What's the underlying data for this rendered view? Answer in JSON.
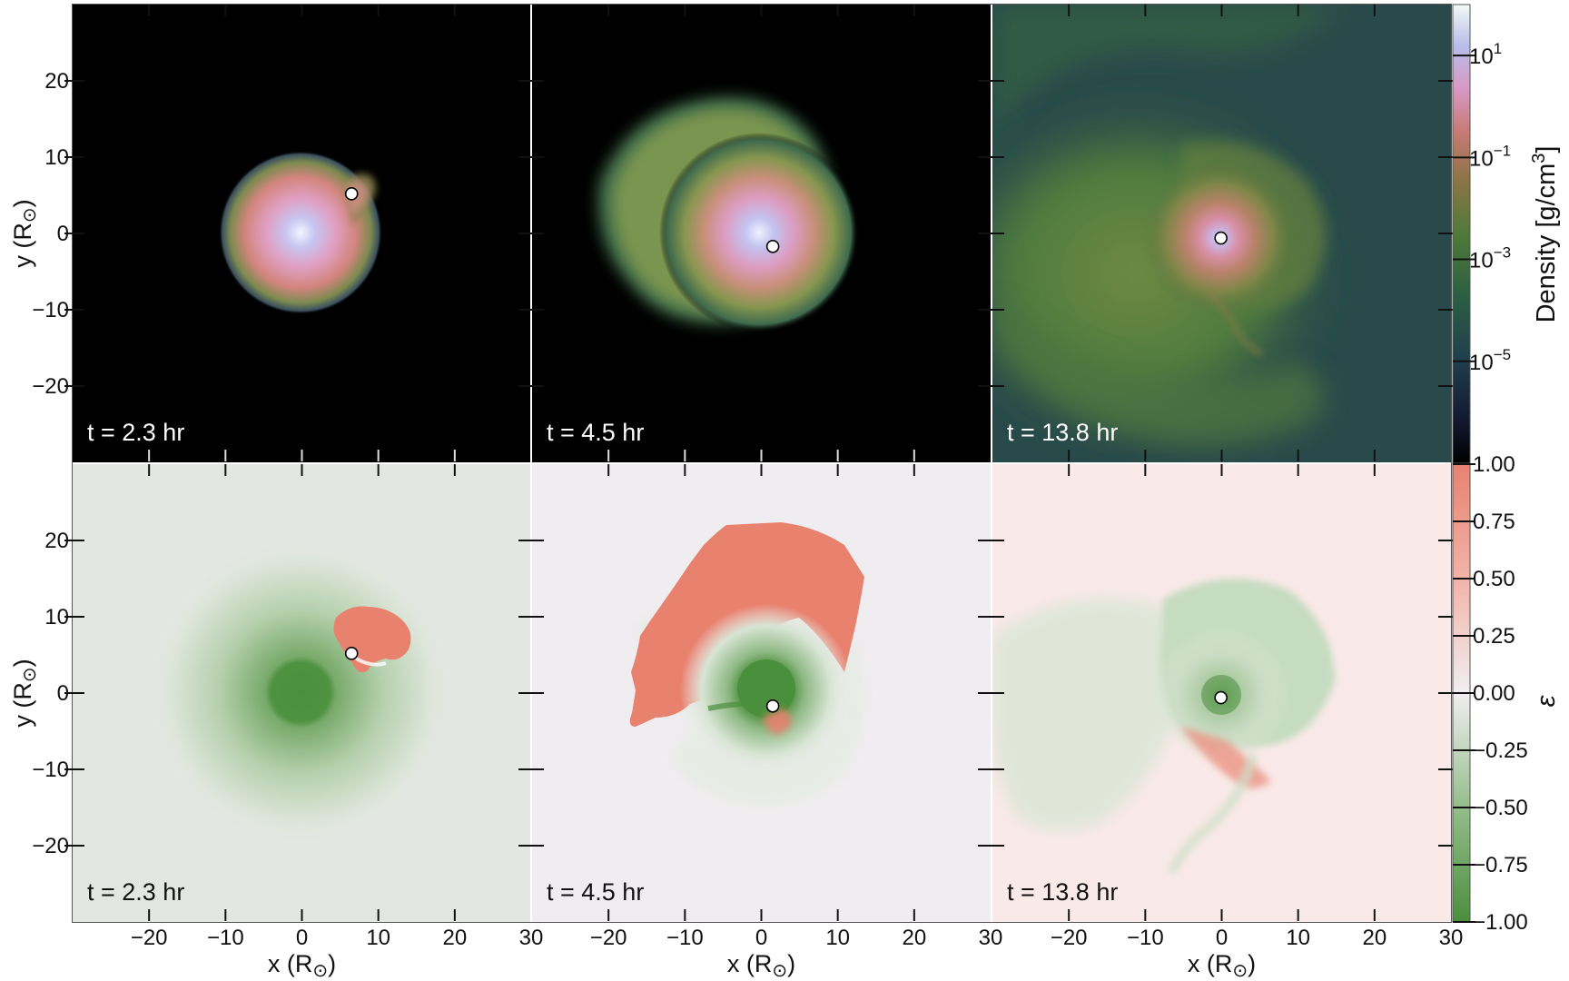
{
  "chart_data": [
    {
      "type": "heatmap",
      "quantity": "density",
      "colorbar": {
        "label_base": "Density [g/cm",
        "label_exp": "3",
        "label_close": "]",
        "scale": "log",
        "ticks": [
          {
            "base": "10",
            "exp": "1",
            "value": 1
          },
          {
            "base": "10",
            "exp": "−1",
            "value": -1
          },
          {
            "base": "10",
            "exp": "−3",
            "value": -3
          },
          {
            "base": "10",
            "exp": "−5",
            "value": -5
          }
        ],
        "range_log10": [
          -7,
          2
        ]
      },
      "panels": [
        {
          "time_label": "t = 2.3 hr",
          "companion": {
            "x": 6.5,
            "y": 5.2
          }
        },
        {
          "time_label": "t = 4.5 hr",
          "companion": {
            "x": 1.5,
            "y": -1.7
          }
        },
        {
          "time_label": "t = 13.8 hr",
          "companion": {
            "x": -0.1,
            "y": -0.6
          }
        }
      ]
    },
    {
      "type": "heatmap",
      "quantity": "epsilon",
      "colorbar": {
        "label": "ε",
        "scale": "linear",
        "range": [
          -1.0,
          1.0
        ],
        "tick_labels": [
          "1.00",
          "0.75",
          "0.50",
          "0.25",
          "0.00",
          "−0.25",
          "−0.50",
          "−0.75",
          "−1.00"
        ],
        "tick_values": [
          1.0,
          0.75,
          0.5,
          0.25,
          0.0,
          -0.25,
          -0.5,
          -0.75,
          -1.0
        ]
      },
      "panels": [
        {
          "time_label": "t = 2.3 hr",
          "companion": {
            "x": 6.5,
            "y": 5.2
          }
        },
        {
          "time_label": "t = 4.5 hr",
          "companion": {
            "x": 1.5,
            "y": -1.7
          }
        },
        {
          "time_label": "t = 13.8 hr",
          "companion": {
            "x": -0.1,
            "y": -0.6
          }
        }
      ]
    }
  ],
  "axes": {
    "xlabel": "x (R",
    "ylabel": "y (R",
    "sun_symbol": "⊙",
    "close_paren": ")",
    "xlim": [
      -30,
      30
    ],
    "ylim": [
      -30,
      30
    ],
    "x_tick_values": [
      -20,
      -10,
      0,
      10,
      20,
      30
    ],
    "x_tick_labels": [
      "−20",
      "−10",
      "0",
      "10",
      "20",
      "30"
    ],
    "y_tick_values": [
      20,
      10,
      0,
      -10,
      -20
    ],
    "y_tick_labels": [
      "20",
      "10",
      "0",
      "−10",
      "−20"
    ]
  },
  "colors": {
    "density_background": "#000000",
    "epsilon_positive": "#e8826f",
    "epsilon_negative": "#4a8f3c",
    "epsilon_zero": "#f1eef1"
  }
}
